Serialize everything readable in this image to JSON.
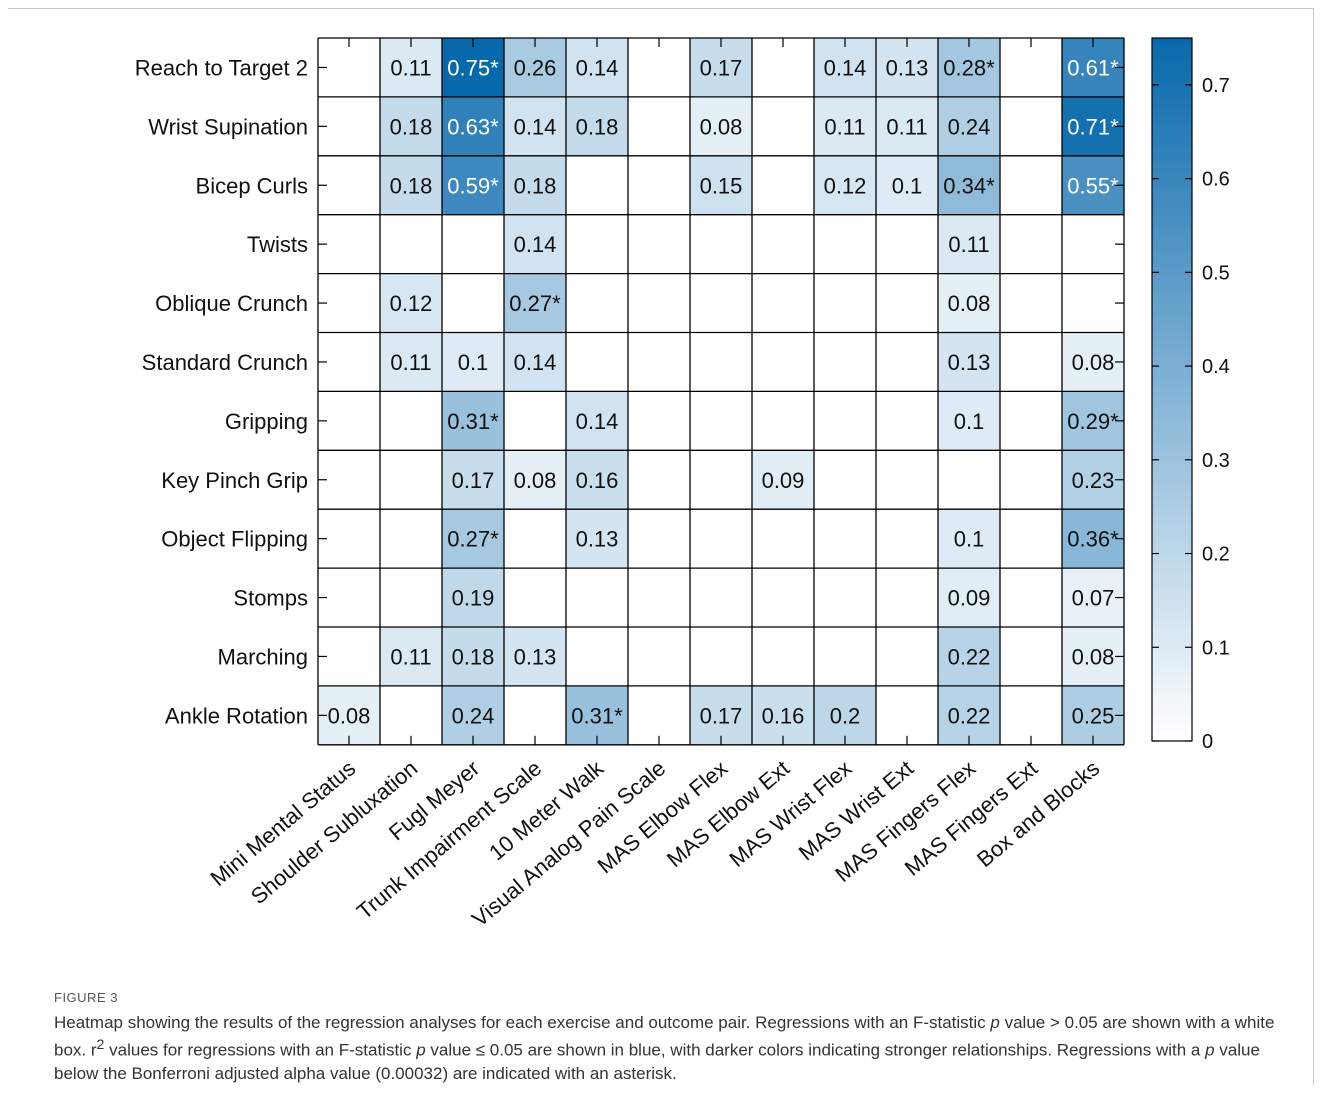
{
  "chart_data": {
    "type": "heatmap",
    "rows": [
      "Reach to Target 2",
      "Wrist Supination",
      "Bicep Curls",
      "Twists",
      "Oblique Crunch",
      "Standard Crunch",
      "Gripping",
      "Key Pinch Grip",
      "Object Flipping",
      "Stomps",
      "Marching",
      "Ankle Rotation"
    ],
    "columns": [
      "Mini Mental Status",
      "Shoulder Subluxation",
      "Fugl Meyer",
      "Trunk Impairment Scale",
      "10 Meter Walk",
      "Visual Analog Pain Scale",
      "MAS Elbow Flex",
      "MAS Elbow Ext",
      "MAS Wrist Flex",
      "MAS Wrist Ext",
      "MAS Fingers Flex",
      "MAS Fingers Ext",
      "Box and Blocks"
    ],
    "values": [
      [
        null,
        0.11,
        0.75,
        0.26,
        0.14,
        null,
        0.17,
        null,
        0.14,
        0.13,
        0.28,
        null,
        0.61
      ],
      [
        null,
        0.18,
        0.63,
        0.14,
        0.18,
        null,
        0.08,
        null,
        0.11,
        0.11,
        0.24,
        null,
        0.71
      ],
      [
        null,
        0.18,
        0.59,
        0.18,
        null,
        null,
        0.15,
        null,
        0.12,
        0.1,
        0.34,
        null,
        0.55
      ],
      [
        null,
        null,
        null,
        0.14,
        null,
        null,
        null,
        null,
        null,
        null,
        0.11,
        null,
        null
      ],
      [
        null,
        0.12,
        null,
        0.27,
        null,
        null,
        null,
        null,
        null,
        null,
        0.08,
        null,
        null
      ],
      [
        null,
        0.11,
        0.1,
        0.14,
        null,
        null,
        null,
        null,
        null,
        null,
        0.13,
        null,
        0.08
      ],
      [
        null,
        null,
        0.31,
        null,
        0.14,
        null,
        null,
        null,
        null,
        null,
        0.1,
        null,
        0.29
      ],
      [
        null,
        null,
        0.17,
        0.08,
        0.16,
        null,
        null,
        0.09,
        null,
        null,
        null,
        null,
        0.23
      ],
      [
        null,
        null,
        0.27,
        null,
        0.13,
        null,
        null,
        null,
        null,
        null,
        0.1,
        null,
        0.36
      ],
      [
        null,
        null,
        0.19,
        null,
        null,
        null,
        null,
        null,
        null,
        null,
        0.09,
        null,
        0.07
      ],
      [
        null,
        0.11,
        0.18,
        0.13,
        null,
        null,
        null,
        null,
        null,
        null,
        0.22,
        null,
        0.08
      ],
      [
        0.08,
        null,
        0.24,
        null,
        0.31,
        null,
        0.17,
        0.16,
        0.2,
        null,
        0.22,
        null,
        0.25
      ]
    ],
    "labels": [
      [
        "",
        "0.11",
        "0.75*",
        "0.26",
        "0.14",
        "",
        "0.17",
        "",
        "0.14",
        "0.13",
        "0.28*",
        "",
        "0.61*"
      ],
      [
        "",
        "0.18",
        "0.63*",
        "0.14",
        "0.18",
        "",
        "0.08",
        "",
        "0.11",
        "0.11",
        "0.24",
        "",
        "0.71*"
      ],
      [
        "",
        "0.18",
        "0.59*",
        "0.18",
        "",
        "",
        "0.15",
        "",
        "0.12",
        "0.1",
        "0.34*",
        "",
        "0.55*"
      ],
      [
        "",
        "",
        "",
        "0.14",
        "",
        "",
        "",
        "",
        "",
        "",
        "0.11",
        "",
        ""
      ],
      [
        "",
        "0.12",
        "",
        "0.27*",
        "",
        "",
        "",
        "",
        "",
        "",
        "0.08",
        "",
        ""
      ],
      [
        "",
        "0.11",
        "0.1",
        "0.14",
        "",
        "",
        "",
        "",
        "",
        "",
        "0.13",
        "",
        "0.08"
      ],
      [
        "",
        "",
        "0.31*",
        "",
        "0.14",
        "",
        "",
        "",
        "",
        "",
        "0.1",
        "",
        "0.29*"
      ],
      [
        "",
        "",
        "0.17",
        "0.08",
        "0.16",
        "",
        "",
        "0.09",
        "",
        "",
        "",
        "",
        "0.23"
      ],
      [
        "",
        "",
        "0.27*",
        "",
        "0.13",
        "",
        "",
        "",
        "",
        "",
        "0.1",
        "",
        "0.36*"
      ],
      [
        "",
        "",
        "0.19",
        "",
        "",
        "",
        "",
        "",
        "",
        "",
        "0.09",
        "",
        "0.07"
      ],
      [
        "",
        "0.11",
        "0.18",
        "0.13",
        "",
        "",
        "",
        "",
        "",
        "",
        "0.22",
        "",
        "0.08"
      ],
      [
        "0.08",
        "",
        "0.24",
        "",
        "0.31*",
        "",
        "0.17",
        "0.16",
        "0.2",
        "",
        "0.22",
        "",
        "0.25"
      ]
    ],
    "colorbar": {
      "range": [
        0,
        0.75
      ],
      "ticks": [
        0,
        0.1,
        0.2,
        0.3,
        0.4,
        0.5,
        0.6,
        0.7
      ],
      "tick_labels": [
        "0",
        "0.1",
        "0.2",
        "0.3",
        "0.4",
        "0.5",
        "0.6",
        "0.7"
      ],
      "color_low": "#ffffff",
      "color_high": "#0868ac"
    },
    "grid": true
  },
  "caption": {
    "label": "FIGURE 3",
    "text_html": "Heatmap showing the results of the regression analyses for each exercise and outcome pair. Regressions with an F-statistic <i>p</i> value &gt; 0.05 are shown with a white box. r<sup>2</sup> values for regressions with an F-statistic <i>p</i> value &le; 0.05 are shown in blue, with darker colors indicating stronger relationships. Regressions with a <i>p</i> value below the Bonferroni adjusted alpha value (0.00032) are indicated with an asterisk."
  }
}
